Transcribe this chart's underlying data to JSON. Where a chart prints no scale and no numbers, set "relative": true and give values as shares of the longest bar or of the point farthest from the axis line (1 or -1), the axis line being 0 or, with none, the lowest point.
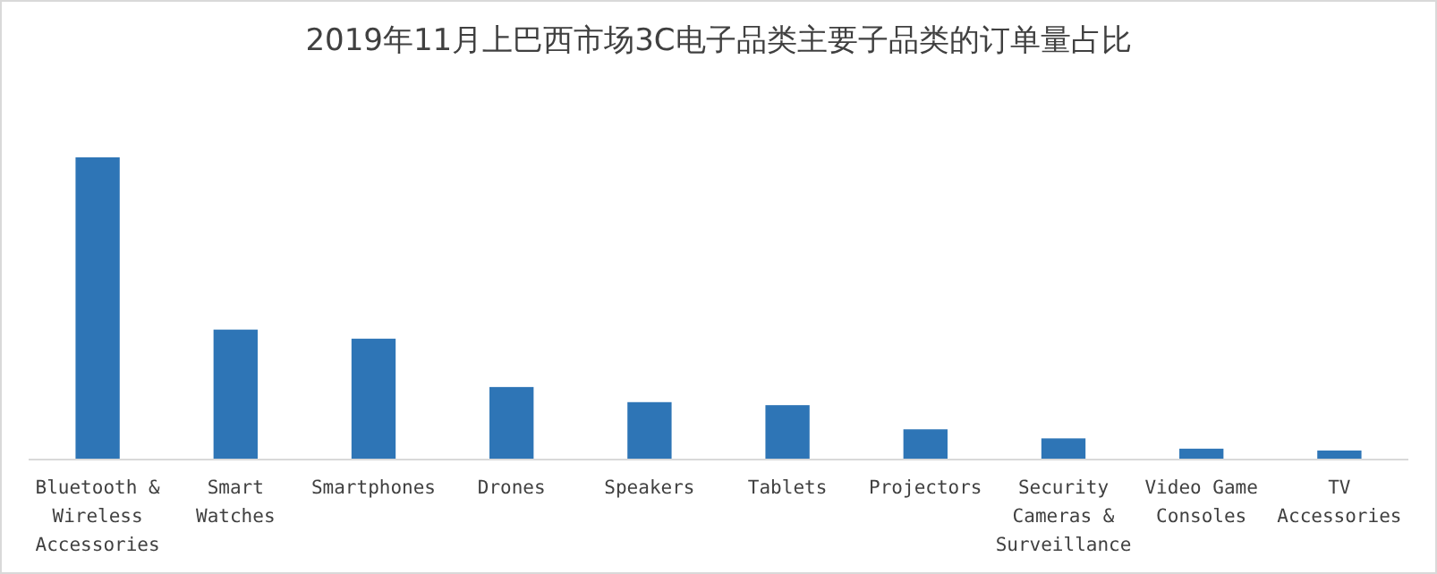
{
  "chart_data": {
    "type": "bar",
    "title": "2019年11月上巴西市场3C电子品类主要子品类的订单量占比",
    "relative": true,
    "color": "#2e75b6",
    "categories": [
      "Bluetooth & Wireless Accessories",
      "Smart Watches",
      "Smartphones",
      "Drones",
      "Speakers",
      "Tablets",
      "Projectors",
      "Security Cameras & Surveillance",
      "Video Game Consoles",
      "TV Accessories"
    ],
    "values": [
      1,
      0.43,
      0.4,
      0.24,
      0.19,
      0.18,
      0.1,
      0.07,
      0.036,
      0.03
    ]
  }
}
